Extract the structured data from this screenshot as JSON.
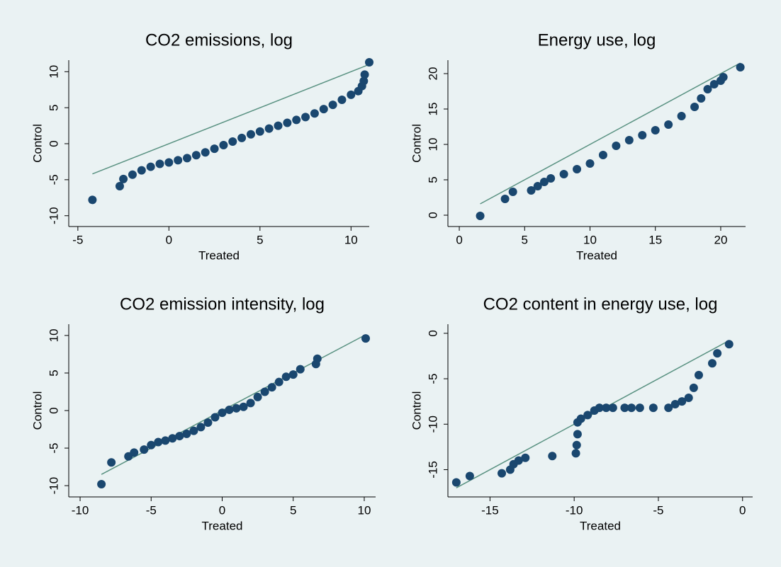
{
  "chart_data": [
    {
      "type": "scatter",
      "title": "CO2 emissions, log",
      "x_label": "Treated",
      "y_label": "Control",
      "xlim": [
        -5.5,
        11
      ],
      "ylim": [
        -11.5,
        11.6
      ],
      "xticks": [
        -5,
        0,
        5,
        10
      ],
      "yticks": [
        -10,
        -5,
        0,
        5,
        10
      ],
      "points": {
        "color": "#1a476f",
        "x": [
          -4.2,
          -2.7,
          -2.5,
          -2,
          -1.5,
          -1,
          -0.5,
          0,
          0.5,
          1,
          1.5,
          2,
          2.5,
          3,
          3.5,
          4,
          4.5,
          5,
          5.5,
          6,
          6.5,
          7,
          7.5,
          8,
          8.5,
          9,
          9.5,
          10,
          10.4,
          10.6,
          10.7,
          10.75,
          11
        ],
        "y": [
          -7.8,
          -5.9,
          -4.9,
          -4.3,
          -3.7,
          -3.2,
          -2.8,
          -2.6,
          -2.3,
          -2,
          -1.6,
          -1.2,
          -0.7,
          -0.2,
          0.3,
          0.8,
          1.3,
          1.7,
          2.1,
          2.5,
          2.9,
          3.3,
          3.7,
          4.2,
          4.8,
          5.4,
          6.1,
          6.8,
          7.3,
          8,
          8.7,
          9.6,
          11.3
        ]
      },
      "reference_line": {
        "color": "#5a9282",
        "x": [
          -4.2,
          11
        ],
        "y": [
          -4.2,
          11
        ]
      }
    },
    {
      "type": "scatter",
      "title": "Energy use, log",
      "x_label": "Treated",
      "y_label": "Control",
      "xlim": [
        -0.87,
        21.9
      ],
      "ylim": [
        -1.6,
        21.9
      ],
      "xticks": [
        0,
        5,
        10,
        15,
        20
      ],
      "yticks": [
        0,
        5,
        10,
        15,
        20
      ],
      "points": {
        "color": "#1a476f",
        "x": [
          1.6,
          3.5,
          4.1,
          5.5,
          6,
          6.5,
          7,
          8,
          9,
          10,
          11,
          12,
          13,
          14,
          15,
          16,
          17,
          18,
          18.5,
          19,
          19.5,
          20,
          20.2,
          21.5
        ],
        "y": [
          -0.1,
          2.3,
          3.3,
          3.5,
          4.1,
          4.7,
          5.2,
          5.8,
          6.5,
          7.3,
          8.5,
          9.8,
          10.6,
          11.3,
          12,
          12.8,
          14,
          15.3,
          16.5,
          17.8,
          18.5,
          19,
          19.5,
          20.9
        ]
      },
      "reference_line": {
        "color": "#5a9282",
        "x": [
          1.6,
          21.5
        ],
        "y": [
          1.6,
          21.5
        ]
      }
    },
    {
      "type": "scatter",
      "title": "CO2 emission intensity, log",
      "x_label": "Treated",
      "y_label": "Control",
      "xlim": [
        -10.8,
        10.8
      ],
      "ylim": [
        -11.5,
        11.5
      ],
      "xticks": [
        -10,
        -5,
        0,
        5,
        10
      ],
      "yticks": [
        -10,
        -5,
        0,
        5,
        10
      ],
      "points": {
        "color": "#1a476f",
        "x": [
          -8.5,
          -7.8,
          -6.6,
          -6.2,
          -5.5,
          -5,
          -4.5,
          -4,
          -3.5,
          -3,
          -2.5,
          -2,
          -1.5,
          -1,
          -0.5,
          0,
          0.5,
          1,
          1.5,
          2,
          2.5,
          3,
          3.5,
          4,
          4.5,
          5,
          5.5,
          6.6,
          6.7,
          10.1
        ],
        "y": [
          -9.8,
          -6.9,
          -6.1,
          -5.6,
          -5.2,
          -4.6,
          -4.2,
          -4,
          -3.7,
          -3.4,
          -3.1,
          -2.7,
          -2.2,
          -1.6,
          -0.9,
          -0.3,
          0.1,
          0.3,
          0.5,
          1,
          1.8,
          2.5,
          3.1,
          3.8,
          4.5,
          4.8,
          5.5,
          6.2,
          6.9,
          9.6
        ]
      },
      "reference_line": {
        "color": "#5a9282",
        "x": [
          -8.5,
          10.1
        ],
        "y": [
          -8.5,
          10.1
        ]
      }
    },
    {
      "type": "scatter",
      "title": "CO2 content in energy use, log",
      "x_label": "Treated",
      "y_label": "Control",
      "xlim": [
        -17.5,
        0.6
      ],
      "ylim": [
        -18,
        1
      ],
      "xticks": [
        -15,
        -10,
        -5,
        0
      ],
      "yticks": [
        -15,
        -10,
        -5,
        0
      ],
      "points": {
        "color": "#1a476f",
        "x": [
          -17,
          -16.2,
          -14.3,
          -13.8,
          -13.6,
          -13.3,
          -12.9,
          -11.3,
          -9.9,
          -9.85,
          -9.8,
          -9.8,
          -9.6,
          -9.2,
          -8.8,
          -8.5,
          -8.1,
          -7.7,
          -7,
          -6.6,
          -6.1,
          -5.3,
          -4.4,
          -4,
          -3.6,
          -3.2,
          -2.9,
          -2.6,
          -1.8,
          -1.5,
          -0.8
        ],
        "y": [
          -16.4,
          -15.7,
          -15.4,
          -15,
          -14.4,
          -14,
          -13.7,
          -13.5,
          -13.2,
          -12.3,
          -11.1,
          -9.8,
          -9.4,
          -9,
          -8.5,
          -8.2,
          -8.2,
          -8.2,
          -8.2,
          -8.2,
          -8.2,
          -8.2,
          -8.2,
          -7.8,
          -7.5,
          -7.1,
          -6,
          -4.6,
          -3.3,
          -2.2,
          -1.2
        ]
      },
      "reference_line": {
        "color": "#5a9282",
        "x": [
          -17,
          -0.8
        ],
        "y": [
          -17,
          -0.8
        ]
      }
    }
  ]
}
